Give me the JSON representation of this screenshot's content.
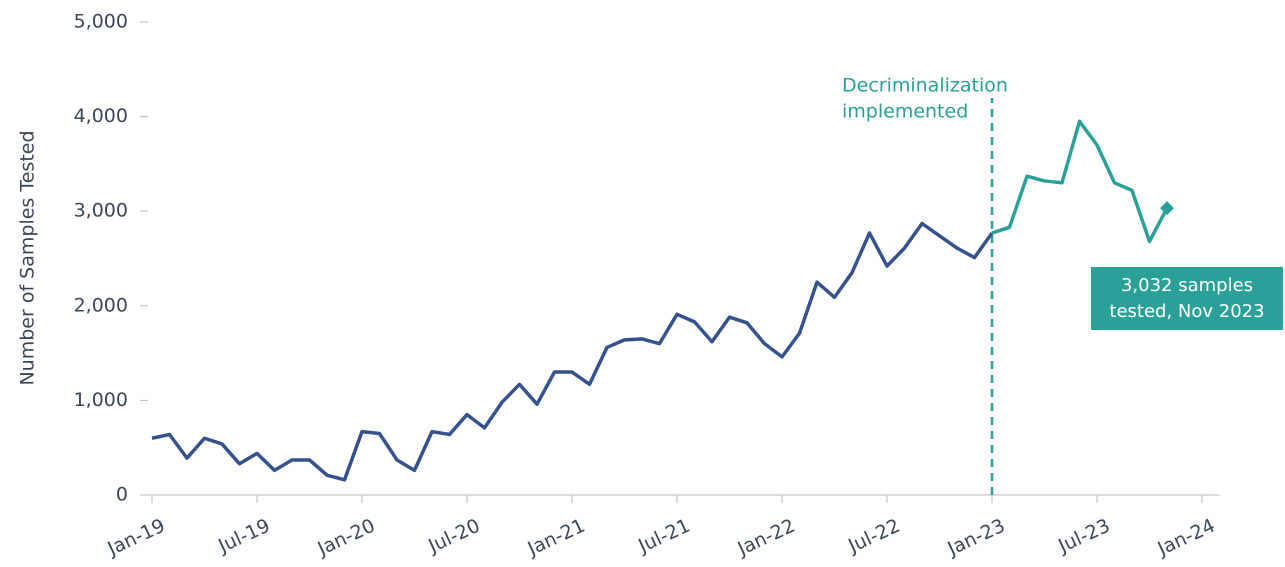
{
  "chart_data": {
    "type": "line",
    "y_label": "Number of Samples Tested",
    "x": [
      "2019-01",
      "2019-02",
      "2019-03",
      "2019-04",
      "2019-05",
      "2019-06",
      "2019-07",
      "2019-08",
      "2019-09",
      "2019-10",
      "2019-11",
      "2019-12",
      "2020-01",
      "2020-02",
      "2020-03",
      "2020-04",
      "2020-05",
      "2020-06",
      "2020-07",
      "2020-08",
      "2020-09",
      "2020-10",
      "2020-11",
      "2020-12",
      "2021-01",
      "2021-02",
      "2021-03",
      "2021-04",
      "2021-05",
      "2021-06",
      "2021-07",
      "2021-08",
      "2021-09",
      "2021-10",
      "2021-11",
      "2021-12",
      "2022-01",
      "2022-02",
      "2022-03",
      "2022-04",
      "2022-05",
      "2022-06",
      "2022-07",
      "2022-08",
      "2022-09",
      "2022-10",
      "2022-11",
      "2022-12",
      "2023-01",
      "2023-02",
      "2023-03",
      "2023-04",
      "2023-05",
      "2023-06",
      "2023-07",
      "2023-08",
      "2023-09",
      "2023-10",
      "2023-11"
    ],
    "series": [
      {
        "color": "#34528f",
        "values": [
          600,
          640,
          390,
          600,
          540,
          330,
          440,
          260,
          370,
          370,
          210,
          160,
          670,
          650,
          370,
          260,
          670,
          640,
          850,
          710,
          980,
          1170,
          960,
          1300,
          1300,
          1170,
          1560,
          1640,
          1650,
          1600,
          1910,
          1830,
          1620,
          1880,
          1820,
          1600,
          1460,
          1710,
          2250,
          2090,
          2350,
          2770,
          2420,
          2610,
          2870,
          2740,
          2610,
          2510,
          2770,
          null,
          null,
          null,
          null,
          null,
          null,
          null,
          null,
          null,
          null
        ]
      },
      {
        "color": "#2aa198",
        "values": [
          null,
          null,
          null,
          null,
          null,
          null,
          null,
          null,
          null,
          null,
          null,
          null,
          null,
          null,
          null,
          null,
          null,
          null,
          null,
          null,
          null,
          null,
          null,
          null,
          null,
          null,
          null,
          null,
          null,
          null,
          null,
          null,
          null,
          null,
          null,
          null,
          null,
          null,
          null,
          null,
          null,
          null,
          null,
          null,
          null,
          null,
          null,
          null,
          2770,
          2830,
          3370,
          3320,
          3300,
          3950,
          3700,
          3300,
          3220,
          2680,
          3032
        ]
      }
    ],
    "xlim": [
      "2019-01",
      "2024-02"
    ],
    "xticks": [
      {
        "value": "2019-01",
        "label": "Jan-19"
      },
      {
        "value": "2019-07",
        "label": "Jul-19"
      },
      {
        "value": "2020-01",
        "label": "Jan-20"
      },
      {
        "value": "2020-07",
        "label": "Jul-20"
      },
      {
        "value": "2021-01",
        "label": "Jan-21"
      },
      {
        "value": "2021-07",
        "label": "Jul-21"
      },
      {
        "value": "2022-01",
        "label": "Jan-22"
      },
      {
        "value": "2022-07",
        "label": "Jul-22"
      },
      {
        "value": "2023-01",
        "label": "Jan-23"
      },
      {
        "value": "2023-07",
        "label": "Jul-23"
      },
      {
        "value": "2024-01",
        "label": "Jan-24"
      }
    ],
    "ylim": [
      0,
      5000
    ],
    "yticks": [
      0,
      {
        "value": 1000,
        "label": "1,000"
      },
      {
        "value": 2000,
        "label": "2,000"
      },
      {
        "value": 3000,
        "label": "3,000"
      },
      {
        "value": 4000,
        "label": "4,000"
      },
      {
        "value": 5000,
        "label": "5,000"
      }
    ],
    "annotations": [
      {
        "x": "2023-01",
        "lines": [
          "Decriminalization",
          "implemented"
        ]
      },
      {
        "x": "2023-11",
        "lines": [
          "3,032 samples",
          "tested, Nov 2023"
        ]
      }
    ]
  }
}
